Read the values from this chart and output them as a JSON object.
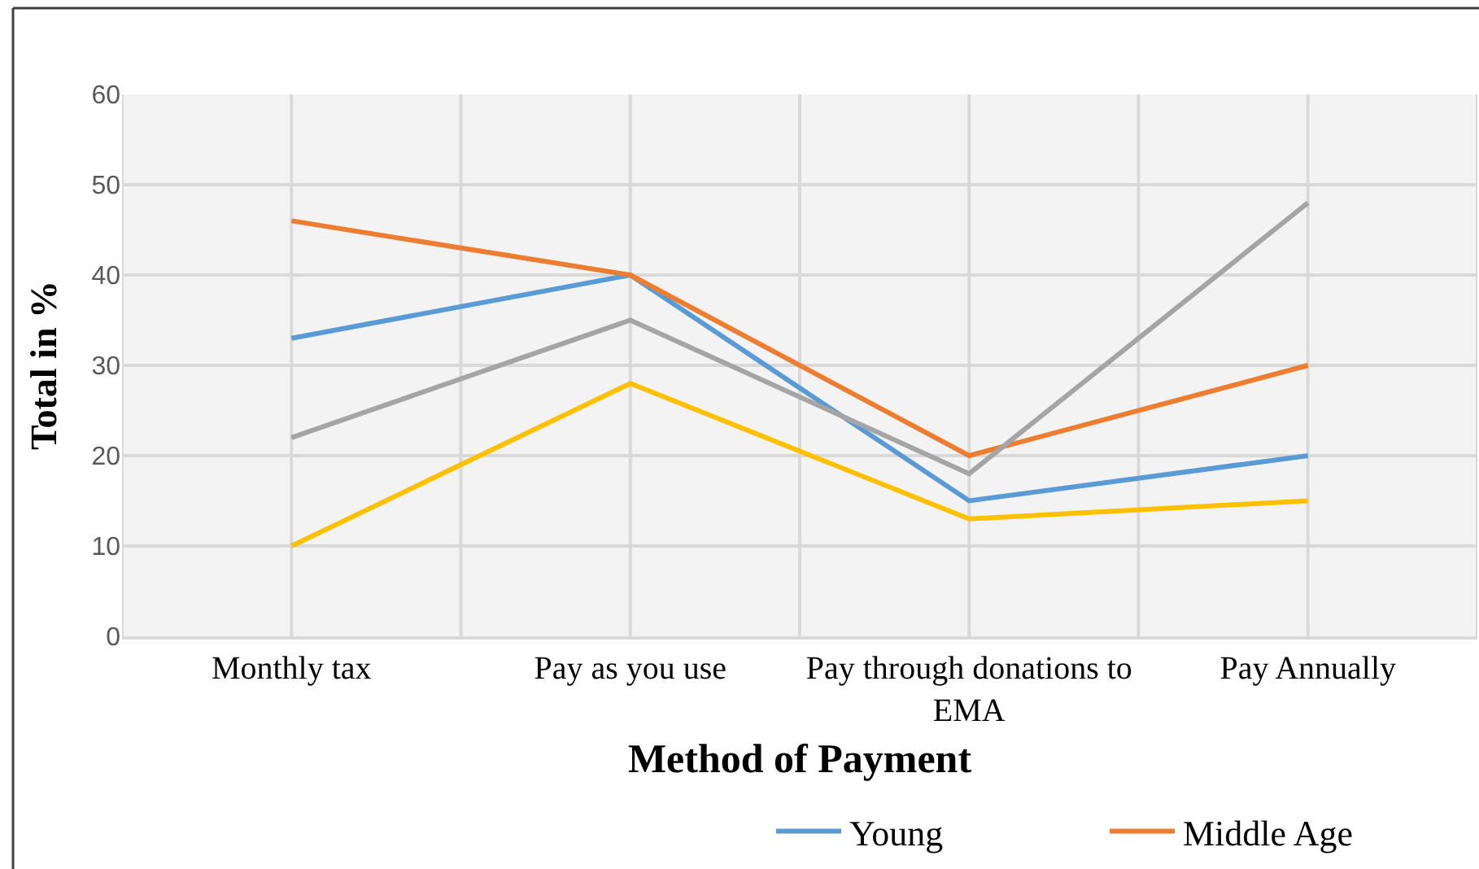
{
  "chart_data": {
    "type": "line",
    "xlabel": "Method of Payment",
    "ylabel": "Total in %",
    "categories": [
      "Monthly tax",
      "Pay as you use",
      "Pay through donations to EMA",
      "Pay Annually"
    ],
    "series": [
      {
        "name": "Young",
        "color": "#5b9bd5",
        "values": [
          33,
          40,
          15,
          20
        ]
      },
      {
        "name": "Middle Age",
        "color": "#ed7d31",
        "values": [
          46,
          40,
          20,
          30
        ]
      },
      {
        "color": "#a5a5a5",
        "values": [
          22,
          35,
          18,
          48
        ]
      },
      {
        "color": "#ffc000",
        "values": [
          10,
          28,
          13,
          15
        ]
      }
    ],
    "ylim": [
      0,
      60
    ],
    "yticks": [
      0,
      10,
      20,
      30,
      40,
      50,
      60
    ],
    "grid": true,
    "legend": "bottom",
    "line_style": "solid"
  }
}
